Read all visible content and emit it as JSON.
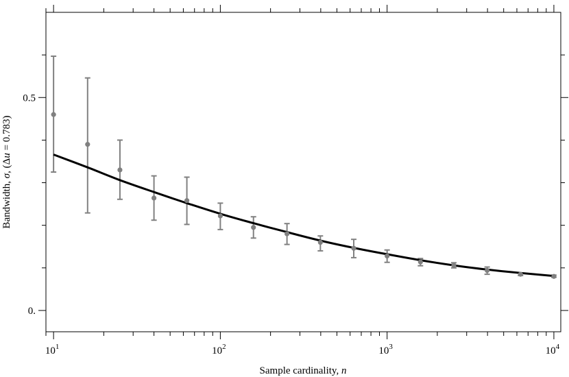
{
  "chart_data": {
    "type": "scatter",
    "xscale": "log",
    "xlim": [
      9,
      11000
    ],
    "ylim": [
      -0.05,
      0.7
    ],
    "x_ticks": [
      {
        "value": 10,
        "base": "10",
        "exp": "1"
      },
      {
        "value": 100,
        "base": "10",
        "exp": "2"
      },
      {
        "value": 1000,
        "base": "10",
        "exp": "3"
      },
      {
        "value": 10000,
        "base": "10",
        "exp": "4"
      }
    ],
    "y_ticks": [
      {
        "value": 0,
        "label": "0."
      },
      {
        "value": 0.5,
        "label": "0.5"
      }
    ],
    "xlabel": {
      "text": "Sample cardinality, ",
      "var": "n"
    },
    "ylabel": {
      "prefix": "Bandwidth, ",
      "var": "σ",
      "mid": ", (Δ",
      "var2": "u",
      "suffix": " = 0.783)"
    },
    "grid": false,
    "series": [
      {
        "kind": "errorbar",
        "color": "#808080",
        "points": [
          {
            "x": 10,
            "y": 0.46,
            "lo": 0.325,
            "hi": 0.597
          },
          {
            "x": 16,
            "y": 0.39,
            "lo": 0.229,
            "hi": 0.546
          },
          {
            "x": 25,
            "y": 0.33,
            "lo": 0.261,
            "hi": 0.4
          },
          {
            "x": 40,
            "y": 0.264,
            "lo": 0.212,
            "hi": 0.316
          },
          {
            "x": 63,
            "y": 0.258,
            "lo": 0.202,
            "hi": 0.313
          },
          {
            "x": 100,
            "y": 0.222,
            "lo": 0.19,
            "hi": 0.252
          },
          {
            "x": 158,
            "y": 0.195,
            "lo": 0.17,
            "hi": 0.22
          },
          {
            "x": 251,
            "y": 0.18,
            "lo": 0.155,
            "hi": 0.204
          },
          {
            "x": 398,
            "y": 0.16,
            "lo": 0.14,
            "hi": 0.175
          },
          {
            "x": 631,
            "y": 0.146,
            "lo": 0.124,
            "hi": 0.167
          },
          {
            "x": 1000,
            "y": 0.128,
            "lo": 0.113,
            "hi": 0.142
          },
          {
            "x": 1585,
            "y": 0.114,
            "lo": 0.105,
            "hi": 0.122
          },
          {
            "x": 2512,
            "y": 0.106,
            "lo": 0.1,
            "hi": 0.112
          },
          {
            "x": 3981,
            "y": 0.094,
            "lo": 0.085,
            "hi": 0.102
          },
          {
            "x": 6310,
            "y": 0.085,
            "lo": 0.082,
            "hi": 0.088
          },
          {
            "x": 10000,
            "y": 0.08,
            "lo": 0.078,
            "hi": 0.083
          }
        ]
      },
      {
        "kind": "line",
        "color": "#000000",
        "x": [
          10,
          16,
          25,
          40,
          63,
          100,
          158,
          251,
          398,
          631,
          1000,
          1585,
          2512,
          3981,
          6310,
          10000
        ],
        "y": [
          0.366,
          0.336,
          0.306,
          0.278,
          0.252,
          0.227,
          0.205,
          0.184,
          0.164,
          0.147,
          0.132,
          0.118,
          0.106,
          0.096,
          0.088,
          0.081
        ]
      }
    ]
  }
}
